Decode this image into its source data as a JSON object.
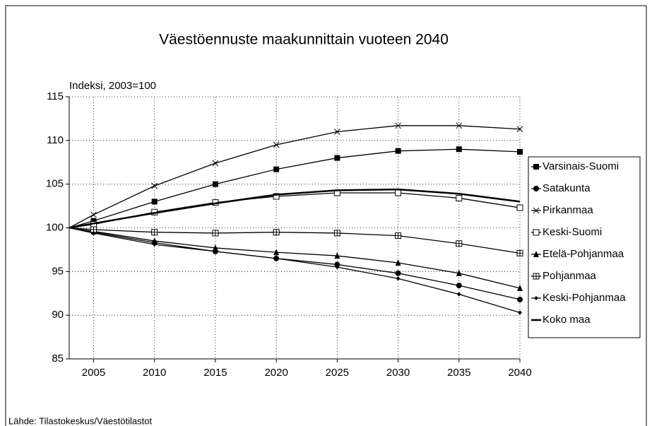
{
  "chart_data": {
    "type": "line",
    "title": "Väestöennuste maakunnittain vuoteen 2040",
    "y_label": "Indeksi, 2003=100",
    "source": "Lähde: Tilastokeskus/Väestötilastot",
    "x": [
      2003,
      2005,
      2010,
      2015,
      2020,
      2025,
      2030,
      2035,
      2040
    ],
    "xlim": [
      2003,
      2040
    ],
    "xticks": [
      2005,
      2010,
      2015,
      2020,
      2025,
      2030,
      2035,
      2040
    ],
    "ylim": [
      85,
      115
    ],
    "yticks": [
      85,
      90,
      95,
      100,
      105,
      110,
      115
    ],
    "grid": true,
    "series": [
      {
        "name": "Varsinais-Suomi",
        "color": "#000000",
        "marker": "square",
        "values": [
          100,
          100.8,
          103,
          105,
          106.7,
          108,
          108.8,
          109,
          108.7
        ]
      },
      {
        "name": "Satakunta",
        "color": "#000000",
        "marker": "circle",
        "values": [
          100,
          99.5,
          98.3,
          97.3,
          96.5,
          95.8,
          94.8,
          93.4,
          91.8
        ]
      },
      {
        "name": "Pirkanmaa",
        "color": "#000000",
        "marker": "x",
        "values": [
          100,
          101.5,
          104.8,
          107.4,
          109.5,
          111,
          111.7,
          111.7,
          111.3
        ]
      },
      {
        "name": "Keski-Suomi",
        "color": "#000000",
        "marker": "open-square",
        "values": [
          100,
          100.4,
          101.8,
          102.9,
          103.6,
          104,
          104,
          103.4,
          102.3
        ]
      },
      {
        "name": "Etelä-Pohjanmaa",
        "color": "#000000",
        "marker": "triangle",
        "values": [
          100,
          99.6,
          98.5,
          97.7,
          97.2,
          96.8,
          96,
          94.8,
          93.1
        ]
      },
      {
        "name": "Pohjanmaa",
        "color": "#000000",
        "marker": "open-square-cross",
        "values": [
          100,
          99.8,
          99.5,
          99.4,
          99.5,
          99.4,
          99.1,
          98.2,
          97.1
        ]
      },
      {
        "name": "Keski-Pohjanmaa",
        "color": "#000000",
        "marker": "diamond",
        "values": [
          100,
          99.4,
          98.1,
          97.3,
          96.5,
          95.5,
          94.2,
          92.4,
          90.3
        ]
      },
      {
        "name": "Koko maa",
        "color": "#000000",
        "marker": "none",
        "values": [
          100,
          100.5,
          101.7,
          102.8,
          103.8,
          104.3,
          104.4,
          103.9,
          103
        ]
      }
    ]
  }
}
